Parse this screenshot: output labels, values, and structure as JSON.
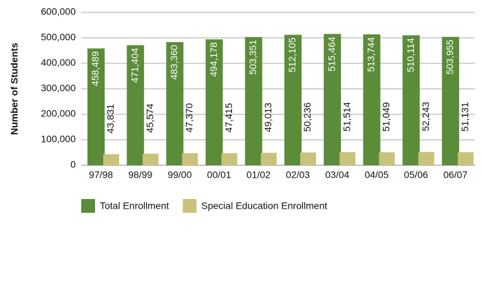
{
  "chart_data": {
    "type": "bar",
    "y_label": "Number of Students",
    "categories": [
      "97/98",
      "98/99",
      "99/00",
      "00/01",
      "01/02",
      "02/03",
      "03/04",
      "04/05",
      "05/06",
      "06/07"
    ],
    "series": [
      {
        "name": "Total Enrollment",
        "color": "#5b8c3a",
        "values": [
          458489,
          471404,
          483360,
          494178,
          503351,
          512105,
          515464,
          513744,
          510114,
          503955
        ],
        "value_labels": [
          "458,489",
          "471,404",
          "483,360",
          "494,178",
          "503,351",
          "512,105",
          "515,464",
          "513,744",
          "510,114",
          "503,955"
        ]
      },
      {
        "name": "Special Education Enrollment",
        "color": "#c9c27a",
        "values": [
          43831,
          45574,
          47370,
          47415,
          49013,
          50236,
          51514,
          51049,
          52243,
          51131
        ],
        "value_labels": [
          "43,831",
          "45,574",
          "47,370",
          "47,415",
          "49,013",
          "50,236",
          "51,514",
          "51,049",
          "52,243",
          "51,131"
        ]
      }
    ],
    "ylim": [
      0,
      600000
    ],
    "yticks": [
      0,
      {
        "value": 100000,
        "label": "100,000"
      },
      {
        "value": 200000,
        "label": "200,000"
      },
      {
        "value": 300000,
        "label": "300,000"
      },
      {
        "value": 400000,
        "label": "400,000"
      },
      {
        "value": 500000,
        "label": "500,000"
      },
      {
        "value": 600000,
        "label": "600,000"
      }
    ],
    "grid": true,
    "legend": "bottom"
  }
}
